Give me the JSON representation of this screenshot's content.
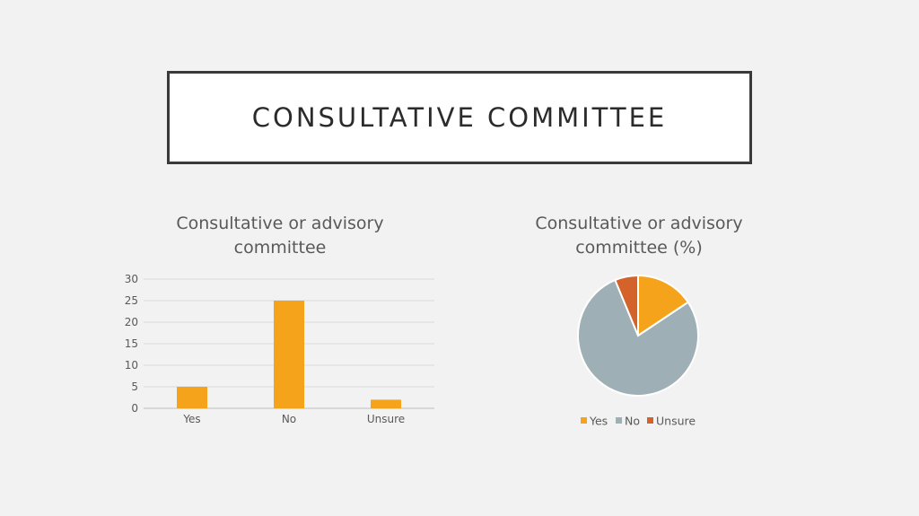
{
  "slide": {
    "title": "Consultative committee"
  },
  "chart_data": [
    {
      "type": "bar",
      "title": "Consultative or advisory committee",
      "categories": [
        "Yes",
        "No",
        "Unsure"
      ],
      "values": [
        5,
        25,
        2
      ],
      "ylim": [
        0,
        30
      ],
      "yticks": [
        0,
        5,
        10,
        15,
        20,
        25,
        30
      ],
      "grid": true,
      "color": "#f5a31a"
    },
    {
      "type": "pie",
      "title": "Consultative or advisory committee (%)",
      "labels": [
        "Yes",
        "No",
        "Unsure"
      ],
      "values": [
        15.625,
        78.125,
        6.25
      ],
      "colors": [
        "#f5a31a",
        "#9eafb5",
        "#d3622b"
      ],
      "legend": "bottom"
    }
  ]
}
